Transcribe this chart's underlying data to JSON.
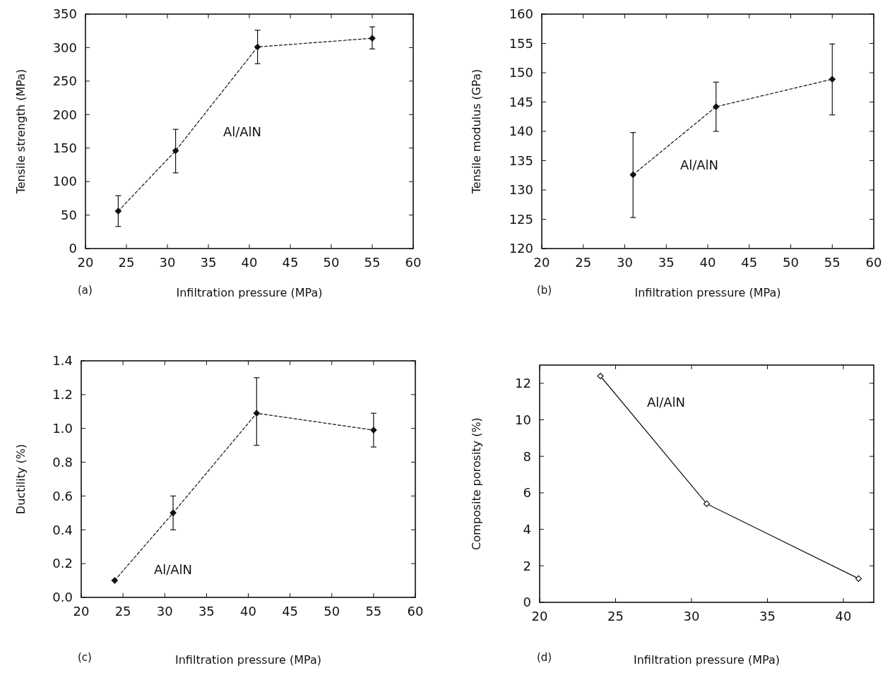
{
  "chart_data": [
    {
      "type": "line",
      "xlabel": "Infiltration pressure (MPa)",
      "ylabel": "Tensile strength (MPa)",
      "x": [
        24,
        31,
        41,
        55
      ],
      "values": [
        56,
        146,
        301,
        314
      ],
      "errors": [
        [
          33,
          79
        ],
        [
          113,
          178
        ],
        [
          276,
          326
        ],
        [
          298,
          331
        ]
      ],
      "color": "#111111",
      "marker": "diamond",
      "line_style": "dashed",
      "xlim": [
        20,
        60
      ],
      "xticks": [
        20,
        25,
        30,
        35,
        40,
        45,
        50,
        55,
        60
      ],
      "ylim": [
        0,
        350
      ],
      "yticks": [
        0,
        50,
        100,
        150,
        200,
        250,
        300,
        350
      ],
      "annotations": [
        "Al/AlN",
        "(a)"
      ]
    },
    {
      "type": "line",
      "xlabel": "Infiltration pressure (MPa)",
      "ylabel": "Tensile modulus (GPa)",
      "x": [
        31,
        41,
        55
      ],
      "values": [
        132.6,
        144.2,
        148.9
      ],
      "errors": [
        [
          125.3,
          139.8
        ],
        [
          140,
          148.4
        ],
        [
          142.8,
          154.9
        ]
      ],
      "color": "#111111",
      "marker": "diamond",
      "line_style": "dashed",
      "xlim": [
        20,
        60
      ],
      "xticks": [
        20,
        25,
        30,
        35,
        40,
        45,
        50,
        55,
        60
      ],
      "ylim": [
        120,
        160
      ],
      "yticks": [
        120,
        125,
        130,
        135,
        140,
        145,
        150,
        155,
        160
      ],
      "annotations": [
        "Al/AlN",
        "(b)"
      ]
    },
    {
      "type": "line",
      "xlabel": "Infiltration pressure (MPa)",
      "ylabel": "Ductility (%)",
      "x": [
        24,
        31,
        41,
        55
      ],
      "values": [
        0.1,
        0.5,
        1.09,
        0.99
      ],
      "errors": [
        null,
        [
          0.4,
          0.6
        ],
        [
          0.9,
          1.3
        ],
        [
          0.89,
          1.09
        ]
      ],
      "color": "#111111",
      "marker": "diamond",
      "line_style": "dashed",
      "xlim": [
        20,
        60
      ],
      "xticks": [
        20,
        25,
        30,
        35,
        40,
        45,
        50,
        55,
        60
      ],
      "ylim": [
        0,
        1.4
      ],
      "yticks": [
        {
          "value": 0,
          "label": "0.0"
        },
        0.2,
        0.4,
        0.6,
        0.8,
        {
          "value": 1,
          "label": "1.0"
        },
        1.2,
        1.4
      ],
      "annotations": [
        "Al/AlN",
        "(c)"
      ]
    },
    {
      "type": "line",
      "xlabel": "Infiltration pressure (MPa)",
      "ylabel": "Composite porosity (%)",
      "x": [
        24,
        31,
        41
      ],
      "values": [
        12.4,
        5.4,
        1.3
      ],
      "color": "#111111",
      "marker": "diamond",
      "line_style": "solid",
      "xlim": [
        20,
        42
      ],
      "xticks": [
        20,
        25,
        30,
        35,
        40
      ],
      "ylim": [
        0,
        13
      ],
      "yticks": [
        0,
        2,
        4,
        6,
        8,
        10,
        12
      ],
      "annotations": [
        "Al/AlN",
        "(d)"
      ]
    }
  ]
}
